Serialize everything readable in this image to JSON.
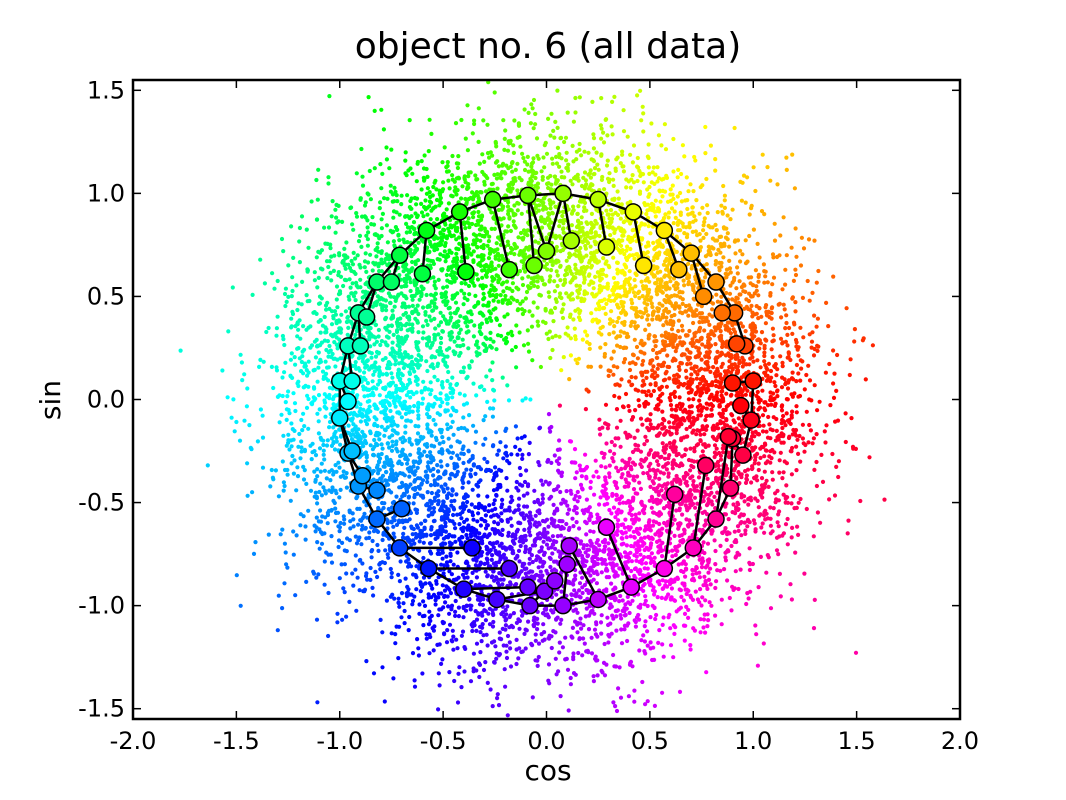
{
  "chart_data": {
    "type": "scatter",
    "title": "object no. 6 (all data)",
    "xlabel": "cos",
    "ylabel": "sin",
    "xlim": [
      -2.0,
      2.0
    ],
    "ylim": [
      -1.55,
      1.55
    ],
    "x_ticks": [
      -2.0,
      -1.5,
      -1.0,
      -0.5,
      0.0,
      0.5,
      1.0,
      1.5,
      2.0
    ],
    "y_ticks": [
      -1.5,
      -1.0,
      -0.5,
      0.0,
      0.5,
      1.0,
      1.5
    ],
    "x_tick_labels": [
      "-2.0",
      "-1.5",
      "-1.0",
      "-0.5",
      "0.0",
      "0.5",
      "1.0",
      "1.5",
      "2.0"
    ],
    "y_tick_labels": [
      "-1.5",
      "-1.0",
      "-0.5",
      "0.0",
      "0.5",
      "1.0",
      "1.5"
    ],
    "grid": false,
    "color_map": "hue by angle (red at 0°, yellow, green, cyan, blue, magenta)",
    "series": [
      {
        "description": "all data points (colored by angle)",
        "approx_ring_radius": 0.9,
        "approx_point_count": 9000,
        "radial_spread": 0.25
      },
      {
        "description": "circle markers connected by black lines",
        "points": [
          [
            1.0,
            0.09
          ],
          [
            0.99,
            -0.1
          ],
          [
            0.95,
            -0.27
          ],
          [
            0.9,
            -0.19
          ],
          [
            0.89,
            -0.43
          ],
          [
            0.82,
            -0.58
          ],
          [
            0.71,
            -0.72
          ],
          [
            0.57,
            -0.82
          ],
          [
            0.41,
            -0.91
          ],
          [
            0.25,
            -0.97
          ],
          [
            0.08,
            -1.0
          ],
          [
            -0.08,
            -1.0
          ],
          [
            -0.24,
            -0.97
          ],
          [
            -0.4,
            -0.92
          ],
          [
            -0.57,
            -0.82
          ],
          [
            -0.71,
            -0.72
          ],
          [
            -0.82,
            -0.58
          ],
          [
            -0.91,
            -0.42
          ],
          [
            -0.96,
            -0.26
          ],
          [
            -1.0,
            -0.09
          ],
          [
            -1.0,
            0.09
          ],
          [
            -0.96,
            0.26
          ],
          [
            -0.91,
            0.42
          ],
          [
            -0.82,
            0.57
          ],
          [
            -0.71,
            0.7
          ],
          [
            -0.58,
            0.82
          ],
          [
            -0.42,
            0.91
          ],
          [
            -0.26,
            0.97
          ],
          [
            -0.09,
            0.99
          ],
          [
            0.08,
            1.0
          ],
          [
            0.25,
            0.97
          ],
          [
            0.42,
            0.91
          ],
          [
            0.57,
            0.82
          ],
          [
            0.7,
            0.71
          ],
          [
            0.82,
            0.57
          ],
          [
            0.91,
            0.42
          ],
          [
            0.96,
            0.26
          ]
        ],
        "spokes": [
          [
            [
              -0.09,
              0.99
            ],
            [
              0.0,
              0.72
            ]
          ],
          [
            [
              0.08,
              1.0
            ],
            [
              0.0,
              0.72
            ]
          ],
          [
            [
              -0.26,
              0.97
            ],
            [
              -0.18,
              0.63
            ]
          ],
          [
            [
              0.08,
              1.0
            ],
            [
              0.12,
              0.77
            ]
          ],
          [
            [
              -0.42,
              0.91
            ],
            [
              -0.39,
              0.62
            ]
          ],
          [
            [
              -0.09,
              0.99
            ],
            [
              -0.06,
              0.65
            ]
          ],
          [
            [
              0.25,
              0.97
            ],
            [
              0.29,
              0.74
            ]
          ],
          [
            [
              0.42,
              0.91
            ],
            [
              0.47,
              0.65
            ]
          ],
          [
            [
              0.57,
              0.82
            ],
            [
              0.64,
              0.63
            ]
          ],
          [
            [
              0.7,
              0.71
            ],
            [
              0.76,
              0.5
            ]
          ],
          [
            [
              -0.58,
              0.82
            ],
            [
              -0.6,
              0.61
            ]
          ],
          [
            [
              -0.71,
              0.7
            ],
            [
              -0.75,
              0.57
            ]
          ],
          [
            [
              -0.82,
              0.57
            ],
            [
              -0.87,
              0.4
            ]
          ],
          [
            [
              -0.91,
              0.42
            ],
            [
              -0.9,
              0.26
            ]
          ],
          [
            [
              -0.96,
              0.26
            ],
            [
              -0.94,
              0.09
            ]
          ],
          [
            [
              -1.0,
              0.09
            ],
            [
              -0.96,
              -0.01
            ]
          ],
          [
            [
              -1.0,
              -0.09
            ],
            [
              -0.94,
              -0.25
            ]
          ],
          [
            [
              -0.96,
              -0.26
            ],
            [
              -0.89,
              -0.37
            ]
          ],
          [
            [
              -0.91,
              -0.42
            ],
            [
              -0.82,
              -0.44
            ]
          ],
          [
            [
              -0.82,
              -0.58
            ],
            [
              -0.7,
              -0.53
            ]
          ],
          [
            [
              -0.71,
              -0.72
            ],
            [
              -0.36,
              -0.72
            ]
          ],
          [
            [
              -0.57,
              -0.82
            ],
            [
              -0.18,
              -0.82
            ]
          ],
          [
            [
              -0.4,
              -0.92
            ],
            [
              -0.09,
              -0.91
            ]
          ],
          [
            [
              -0.24,
              -0.97
            ],
            [
              -0.01,
              -0.93
            ]
          ],
          [
            [
              -0.08,
              -1.0
            ],
            [
              0.04,
              -0.88
            ]
          ],
          [
            [
              0.08,
              -1.0
            ],
            [
              0.1,
              -0.8
            ]
          ],
          [
            [
              0.25,
              -0.97
            ],
            [
              0.11,
              -0.71
            ]
          ],
          [
            [
              0.41,
              -0.91
            ],
            [
              0.29,
              -0.62
            ]
          ],
          [
            [
              0.57,
              -0.82
            ],
            [
              0.62,
              -0.46
            ]
          ],
          [
            [
              0.71,
              -0.72
            ],
            [
              0.77,
              -0.32
            ]
          ],
          [
            [
              0.82,
              -0.58
            ],
            [
              0.88,
              -0.18
            ]
          ],
          [
            [
              0.99,
              -0.1
            ],
            [
              0.94,
              -0.03
            ]
          ],
          [
            [
              1.0,
              0.09
            ],
            [
              0.9,
              0.08
            ]
          ],
          [
            [
              0.96,
              0.26
            ],
            [
              0.92,
              0.27
            ]
          ],
          [
            [
              0.91,
              0.42
            ],
            [
              0.85,
              0.42
            ]
          ]
        ]
      }
    ]
  }
}
